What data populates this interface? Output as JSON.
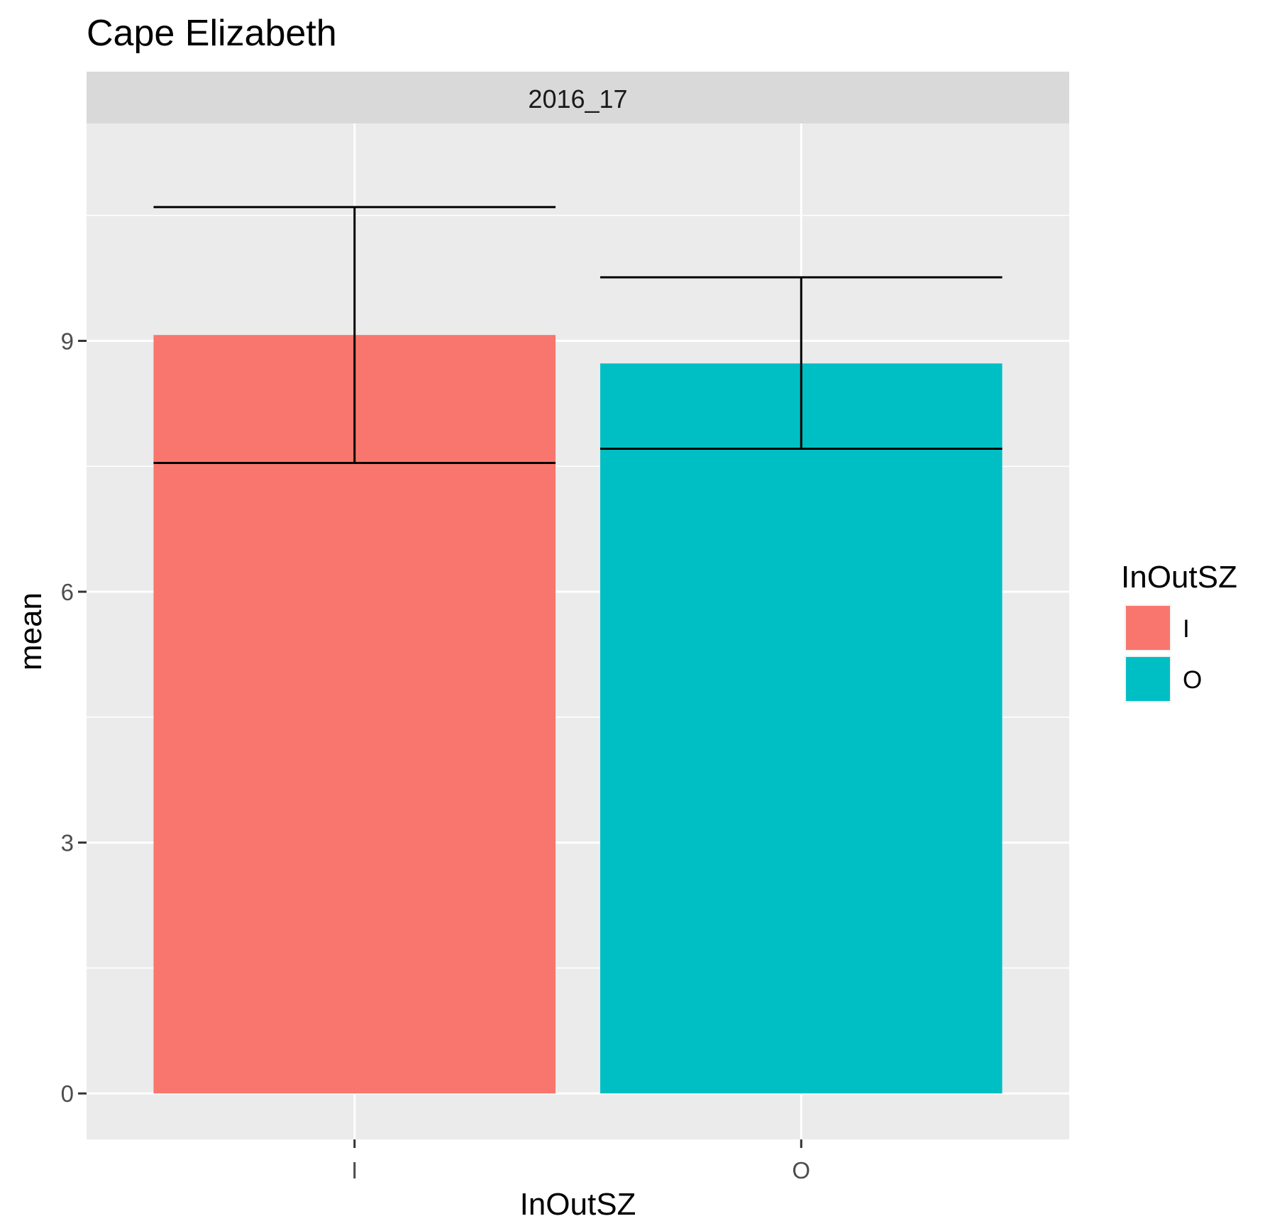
{
  "chart_data": {
    "type": "bar",
    "title": "Cape Elizabeth",
    "facet_label": "2016_17",
    "xlabel": "InOutSZ",
    "ylabel": "mean",
    "categories": [
      "I",
      "O"
    ],
    "values": [
      9.07,
      8.73
    ],
    "error_low": [
      7.54,
      7.71
    ],
    "error_high": [
      10.6,
      9.76
    ],
    "ylim": [
      -0.55,
      11.6
    ],
    "y_ticks": [
      0,
      3,
      6,
      9
    ],
    "y_tick_labels": [
      "0",
      "3",
      "6",
      "9"
    ],
    "grid": true,
    "legend": {
      "title": "InOutSZ",
      "placement": "right",
      "entries": [
        {
          "label": "I",
          "color": "#F8766D"
        },
        {
          "label": "O",
          "color": "#00BFC4"
        }
      ]
    },
    "colors": [
      "#F8766D",
      "#00BFC4"
    ],
    "panel_background": "#EBEBEB",
    "strip_background": "#D9D9D9"
  }
}
